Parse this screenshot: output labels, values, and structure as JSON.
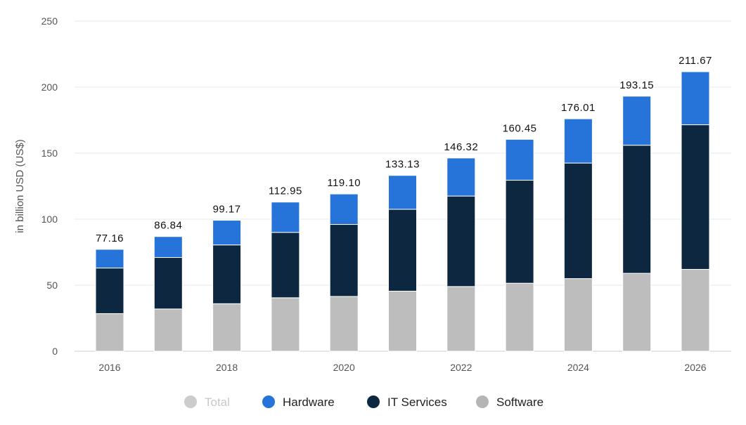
{
  "chart_data": {
    "type": "bar",
    "stacked": true,
    "ylabel": "in billion USD (US$)",
    "xlabel": "",
    "title": "",
    "ylim": [
      0,
      250
    ],
    "yticks": [
      0,
      50,
      100,
      150,
      200,
      250
    ],
    "categories": [
      "2016",
      "2017",
      "2018",
      "2019",
      "2020",
      "2021",
      "2022",
      "2023",
      "2024",
      "2025",
      "2026"
    ],
    "x_tick_labels": [
      "2016",
      "2018",
      "2020",
      "2022",
      "2024",
      "2026"
    ],
    "totals": [
      "77.16",
      "86.84",
      "99.17",
      "112.95",
      "119.10",
      "133.13",
      "146.32",
      "160.45",
      "176.01",
      "193.15",
      "211.67"
    ],
    "series": [
      {
        "name": "Software",
        "color": "#bdbdbd",
        "values": [
          28.5,
          32,
          36,
          40.5,
          41.5,
          45.5,
          49,
          51.5,
          55,
          59,
          62
        ]
      },
      {
        "name": "IT Services",
        "color": "#0e2741",
        "values": [
          34.5,
          39,
          44.5,
          49.5,
          54.5,
          62,
          68.5,
          78,
          87.5,
          97,
          109.5
        ]
      },
      {
        "name": "Hardware",
        "color": "#2673d9",
        "values": [
          14.16,
          15.84,
          18.67,
          22.95,
          23.1,
          25.63,
          28.82,
          30.95,
          33.51,
          37.15,
          40.17
        ]
      }
    ],
    "legend": {
      "placement": "bottom",
      "items": [
        {
          "label": "Total",
          "color": "#cccccc",
          "active": false
        },
        {
          "label": "Hardware",
          "color": "#2673d9",
          "active": true
        },
        {
          "label": "IT Services",
          "color": "#0e2741",
          "active": true
        },
        {
          "label": "Software",
          "color": "#b5b5b5",
          "active": true
        }
      ]
    }
  }
}
